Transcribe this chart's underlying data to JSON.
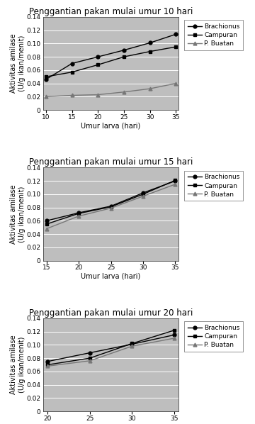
{
  "charts": [
    {
      "title": "Penggantian pakan mulai umur 10 hari",
      "x": [
        10,
        15,
        20,
        25,
        30,
        35
      ],
      "xlabel": "Umur larva (hari)",
      "ylabel": "Aktivitas amilase\n(U/g ikan/menit)",
      "ylim": [
        0,
        0.14
      ],
      "yticks": [
        0,
        0.02,
        0.04,
        0.06,
        0.08,
        0.1,
        0.12,
        0.14
      ],
      "series": [
        {
          "label": "Brachionus",
          "y": [
            0.046,
            0.07,
            0.08,
            0.09,
            0.101,
            0.114
          ],
          "marker": "o",
          "color": "#000000",
          "linestyle": "-"
        },
        {
          "label": "Campuran",
          "y": [
            0.05,
            0.057,
            0.068,
            0.08,
            0.088,
            0.095
          ],
          "marker": "s",
          "color": "#000000",
          "linestyle": "-"
        },
        {
          "label": "P. Buatan",
          "y": [
            0.02,
            0.022,
            0.023,
            0.027,
            0.032,
            0.04
          ],
          "marker": "^",
          "color": "#777777",
          "linestyle": "-"
        }
      ]
    },
    {
      "title": "Penggantian pakan mulai umur 15 hari",
      "x": [
        15,
        20,
        25,
        30,
        35
      ],
      "xlabel": "Umur larva (hari)",
      "ylabel": "Aktivitas amilase\n(U/g ikan/menit)",
      "ylim": [
        0,
        0.14
      ],
      "yticks": [
        0,
        0.02,
        0.04,
        0.06,
        0.08,
        0.1,
        0.12,
        0.14
      ],
      "series": [
        {
          "label": "Brachionus",
          "y": [
            0.06,
            0.072,
            0.082,
            0.102,
            0.12
          ],
          "marker": "o",
          "color": "#000000",
          "linestyle": "-"
        },
        {
          "label": "Campuran",
          "y": [
            0.055,
            0.071,
            0.081,
            0.1,
            0.121
          ],
          "marker": "s",
          "color": "#000000",
          "linestyle": "-"
        },
        {
          "label": "P. Buatan",
          "y": [
            0.048,
            0.067,
            0.079,
            0.097,
            0.115
          ],
          "marker": "^",
          "color": "#777777",
          "linestyle": "-"
        }
      ]
    },
    {
      "title": "Penggantian pakan mulai umur 20 hari",
      "x": [
        20,
        25,
        30,
        35
      ],
      "xlabel": "Umur larva (hari)",
      "ylabel": "Aktivitas amilase\n(U/g ikan/menit)",
      "ylim": [
        0,
        0.14
      ],
      "yticks": [
        0,
        0.02,
        0.04,
        0.06,
        0.08,
        0.1,
        0.12,
        0.14
      ],
      "series": [
        {
          "label": "Brachionus",
          "y": [
            0.075,
            0.088,
            0.101,
            0.115
          ],
          "marker": "o",
          "color": "#000000",
          "linestyle": "-"
        },
        {
          "label": "Campuran",
          "y": [
            0.07,
            0.08,
            0.102,
            0.122
          ],
          "marker": "s",
          "color": "#000000",
          "linestyle": "-"
        },
        {
          "label": "P. Buatan",
          "y": [
            0.068,
            0.076,
            0.098,
            0.11
          ],
          "marker": "^",
          "color": "#777777",
          "linestyle": "-"
        }
      ]
    }
  ],
  "bg_color": "#bebebe",
  "fig_bg": "#ffffff",
  "title_fontsize": 8.5,
  "label_fontsize": 7,
  "tick_fontsize": 6.5,
  "legend_fontsize": 6.5
}
